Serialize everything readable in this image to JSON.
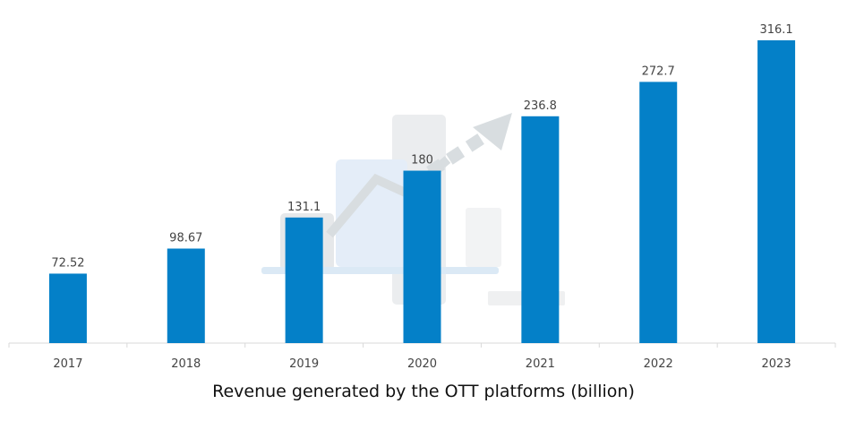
{
  "chart_data": {
    "type": "bar",
    "categories": [
      "2017",
      "2018",
      "2019",
      "2020",
      "2021",
      "2022",
      "2023"
    ],
    "values": [
      72.52,
      98.67,
      131.1,
      180,
      236.8,
      272.7,
      316.1
    ],
    "value_labels": [
      "72.52",
      "98.67",
      "131.1",
      "180",
      "236.8",
      "272.7",
      "316.1"
    ],
    "title": "",
    "xlabel": "Revenue generated by the OTT platforms (billion)",
    "ylabel": "",
    "ylim": [
      0,
      316.1
    ],
    "grid": false,
    "legend": "none",
    "bar_color": "#0480C8"
  }
}
